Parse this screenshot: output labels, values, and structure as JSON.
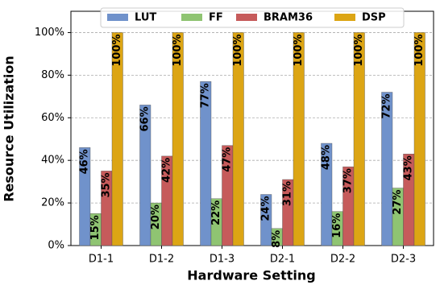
{
  "chart_data": {
    "type": "bar",
    "x_label": "Hardware Setting",
    "y_label": "Resource Utilization",
    "categories": [
      "D1-1",
      "D1-2",
      "D1-3",
      "D2-1",
      "D2-2",
      "D2-3"
    ],
    "series": [
      {
        "name": "LUT",
        "color": "#7092cb",
        "values": [
          46,
          66,
          77,
          24,
          48,
          72
        ],
        "value_labels": [
          "46%",
          "66%",
          "77%",
          "24%",
          "48%",
          "72%"
        ]
      },
      {
        "name": "FF",
        "color": "#8fc472",
        "values": [
          15,
          20,
          22,
          8,
          16,
          27
        ],
        "value_labels": [
          "15%",
          "20%",
          "22%",
          "8%",
          "16%",
          "27%"
        ]
      },
      {
        "name": "BRAM36",
        "color": "#c65b5b",
        "values": [
          35,
          42,
          47,
          31,
          37,
          43
        ],
        "value_labels": [
          "35%",
          "42%",
          "47%",
          "31%",
          "37%",
          "43%"
        ]
      },
      {
        "name": "DSP",
        "color": "#dca514",
        "values": [
          100,
          100,
          100,
          100,
          100,
          100
        ],
        "value_labels": [
          "100%",
          "100%",
          "100%",
          "100%",
          "100%",
          "100%"
        ]
      }
    ],
    "ylim": [
      0,
      110
    ],
    "yticks": [
      {
        "value": 0,
        "label": "0%"
      },
      {
        "value": 20,
        "label": "20%"
      },
      {
        "value": 40,
        "label": "40%"
      },
      {
        "value": 60,
        "label": "60%"
      },
      {
        "value": 80,
        "label": "80%"
      },
      {
        "value": 100,
        "label": "100%"
      }
    ],
    "grid": true,
    "legend": "upper center"
  }
}
